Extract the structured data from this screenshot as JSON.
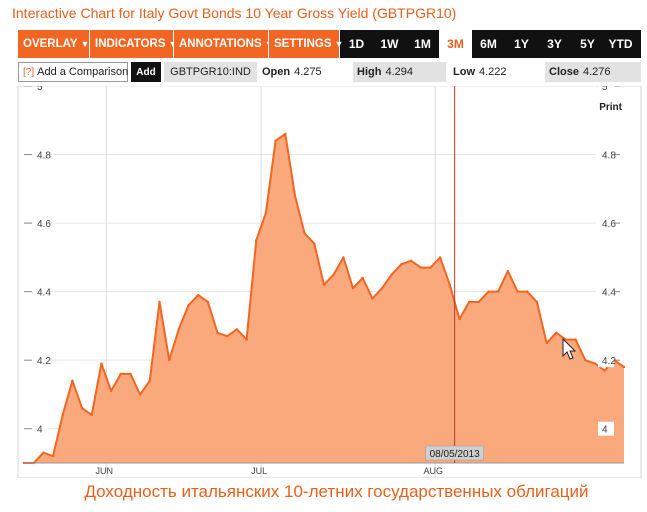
{
  "header": {
    "title": "Interactive Chart for Italy Govt Bonds 10 Year Gross Yield (GBTPGR10)"
  },
  "toolbar": {
    "menus": [
      {
        "label": "OVERLAY"
      },
      {
        "label": "INDICATORS"
      },
      {
        "label": "ANNOTATIONS"
      },
      {
        "label": "SETTINGS"
      }
    ],
    "ranges": [
      "1D",
      "1W",
      "1M",
      "3M",
      "6M",
      "1Y",
      "3Y",
      "5Y",
      "YTD"
    ],
    "active_range": "3M",
    "menu_color": "#f26522"
  },
  "infobar": {
    "compare_help": "[?]",
    "compare_placeholder": "Add a Comparison",
    "add_label": "Add",
    "ticker": "GBTPGR10:IND",
    "open_label": "Open",
    "open_value": "4.275",
    "high_label": "High",
    "high_value": "4.294",
    "low_label": "Low",
    "low_value": "4.222",
    "close_label": "Close",
    "close_value": "4.276"
  },
  "print_label": "Print",
  "crosshair_date": "08/05/2013",
  "caption": "Доходность итальянских 10-летних государственных облигаций",
  "chart_data": {
    "type": "area",
    "title": "",
    "xlabel": "",
    "ylabel": "",
    "ylim": [
      3.9,
      5.0
    ],
    "yticks": [
      4,
      4.2,
      4.4,
      4.6,
      4.8,
      5
    ],
    "ytick_labels": [
      "4",
      "4.2",
      "4.4",
      "4.6",
      "4.8",
      "5"
    ],
    "xticks": [
      {
        "label": "JUN",
        "index": 8.5
      },
      {
        "label": "JUL",
        "index": 24.5
      },
      {
        "label": "AUG",
        "index": 42.5
      }
    ],
    "crosshair_index": 44.5,
    "grid": true,
    "line_color": "#f26522",
    "fill_color": "#f9a97c",
    "series": [
      {
        "values": [
          3.9,
          3.9,
          3.93,
          3.92,
          4.04,
          4.14,
          4.06,
          4.04,
          4.19,
          4.11,
          4.16,
          4.16,
          4.1,
          4.14,
          4.37,
          4.2,
          4.29,
          4.36,
          4.39,
          4.37,
          4.28,
          4.27,
          4.29,
          4.26,
          4.55,
          4.63,
          4.84,
          4.86,
          4.68,
          4.57,
          4.54,
          4.42,
          4.45,
          4.5,
          4.41,
          4.44,
          4.38,
          4.41,
          4.45,
          4.48,
          4.49,
          4.47,
          4.47,
          4.5,
          4.42,
          4.32,
          4.37,
          4.37,
          4.4,
          4.4,
          4.46,
          4.4,
          4.4,
          4.37,
          4.25,
          4.28,
          4.26,
          4.26,
          4.2,
          4.19,
          4.17,
          4.2,
          4.18
        ]
      }
    ]
  }
}
